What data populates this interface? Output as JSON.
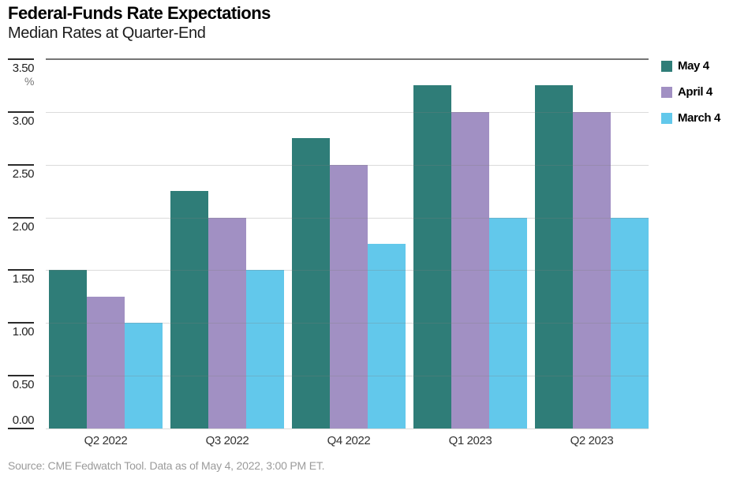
{
  "chart_data": {
    "type": "bar",
    "title": "Federal-Funds Rate Expectations",
    "subtitle": "Median Rates at Quarter-End",
    "unit": "%",
    "categories": [
      "Q2 2022",
      "Q3 2022",
      "Q4 2022",
      "Q1 2023",
      "Q2 2023"
    ],
    "series": [
      {
        "name": "May 4",
        "color": "#2F7D78",
        "values": [
          1.5,
          2.25,
          2.75,
          3.25,
          3.25
        ]
      },
      {
        "name": "April 4",
        "color": "#A190C3",
        "values": [
          1.25,
          2.0,
          2.5,
          3.0,
          3.0
        ]
      },
      {
        "name": "March 4",
        "color": "#62C8EB",
        "values": [
          1.0,
          1.5,
          1.75,
          2.0,
          2.0
        ]
      }
    ],
    "ylim": [
      0,
      3.5
    ],
    "ytick_step": 0.5,
    "ytick_labels": [
      "3.50",
      "3.00",
      "2.50",
      "2.00",
      "1.50",
      "1.00",
      "0.50",
      "0.00"
    ],
    "grid": true,
    "legend_position": "top-right",
    "source": "Source: CME Fedwatch Tool. Data as of May 4, 2022, 3:00 PM ET."
  }
}
